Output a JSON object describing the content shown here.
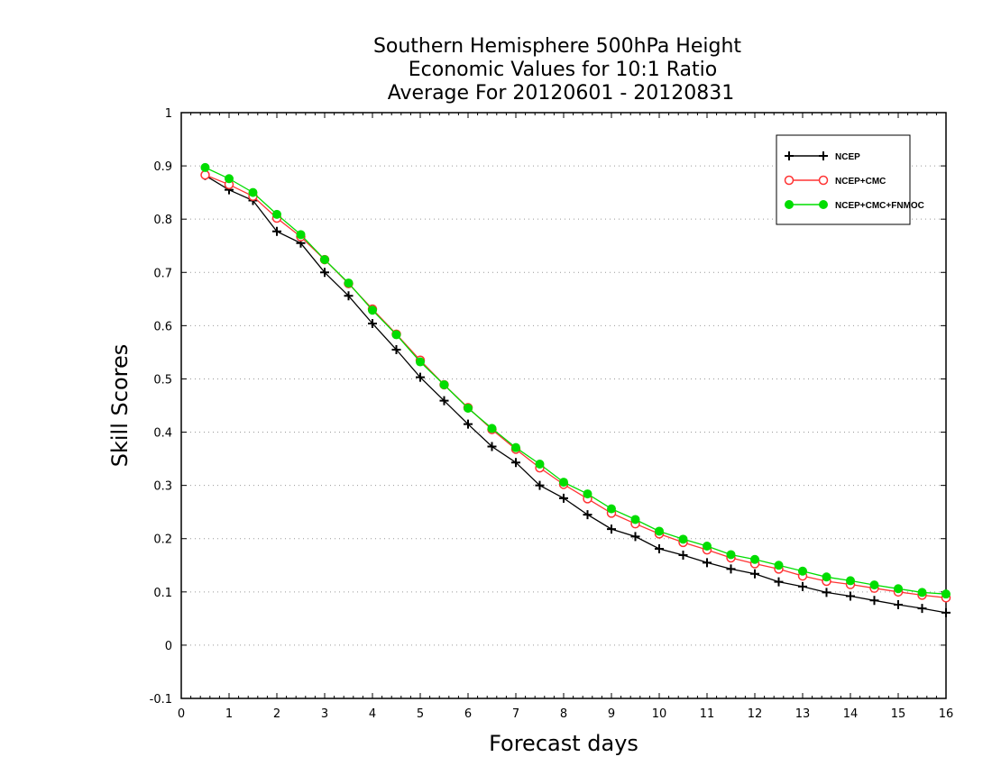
{
  "chart_data": {
    "type": "line",
    "title": [
      "Southern Hemisphere 500hPa Height",
      "Economic Values for 10:1 Ratio",
      "Average For 20120601 - 20120831"
    ],
    "xlabel": "Forecast days",
    "ylabel": "Skill Scores",
    "xlim": [
      0,
      16
    ],
    "ylim": [
      -0.1,
      1
    ],
    "x_ticks": [
      0,
      1,
      2,
      3,
      4,
      5,
      6,
      7,
      8,
      9,
      10,
      11,
      12,
      13,
      14,
      15,
      16
    ],
    "x_tick_labels": [
      "0",
      "1",
      "2",
      "3",
      "4",
      "5",
      "6",
      "7",
      "8",
      "9",
      "10",
      "11",
      "12",
      "13",
      "14",
      "15",
      "16"
    ],
    "y_ticks": [
      -0.1,
      0,
      0.1,
      0.2,
      0.3,
      0.4,
      0.5,
      0.6,
      0.7,
      0.8,
      0.9,
      1
    ],
    "y_tick_labels": [
      "-0.1",
      "0",
      "0.1",
      "0.2",
      "0.3",
      "0.4",
      "0.5",
      "0.6",
      "0.7",
      "0.8",
      "0.9",
      "1"
    ],
    "grid": true,
    "legend_position": "top-right",
    "x": [
      0.5,
      1,
      1.5,
      2,
      2.5,
      3,
      3.5,
      4,
      4.5,
      5,
      5.5,
      6,
      6.5,
      7,
      7.5,
      8,
      8.5,
      9,
      9.5,
      10,
      10.5,
      11,
      11.5,
      12,
      12.5,
      13,
      13.5,
      14,
      14.5,
      15,
      15.5,
      16
    ],
    "series": [
      {
        "name": "NCEP",
        "color": "#000000",
        "marker": "plus",
        "values": [
          0.882,
          0.855,
          0.835,
          0.777,
          0.755,
          0.7,
          0.656,
          0.604,
          0.555,
          0.503,
          0.459,
          0.415,
          0.373,
          0.343,
          0.3,
          0.276,
          0.245,
          0.218,
          0.204,
          0.181,
          0.169,
          0.155,
          0.143,
          0.134,
          0.119,
          0.11,
          0.099,
          0.092,
          0.084,
          0.076,
          0.069,
          0.061
        ]
      },
      {
        "name": "NCEP+CMC",
        "color": "#ff3333",
        "marker": "open-circle",
        "values": [
          0.883,
          0.865,
          0.843,
          0.802,
          0.767,
          0.724,
          0.679,
          0.631,
          0.584,
          0.535,
          0.489,
          0.446,
          0.405,
          0.368,
          0.333,
          0.302,
          0.275,
          0.248,
          0.228,
          0.209,
          0.193,
          0.179,
          0.164,
          0.153,
          0.143,
          0.13,
          0.12,
          0.114,
          0.107,
          0.1,
          0.094,
          0.089
        ]
      },
      {
        "name": "NCEP+CMC+FNMOC",
        "color": "#00dd00",
        "marker": "filled-circle",
        "values": [
          0.897,
          0.876,
          0.85,
          0.809,
          0.771,
          0.724,
          0.68,
          0.629,
          0.583,
          0.532,
          0.489,
          0.445,
          0.407,
          0.371,
          0.34,
          0.306,
          0.284,
          0.256,
          0.236,
          0.214,
          0.199,
          0.186,
          0.17,
          0.161,
          0.15,
          0.139,
          0.128,
          0.121,
          0.113,
          0.106,
          0.099,
          0.096
        ]
      }
    ]
  }
}
